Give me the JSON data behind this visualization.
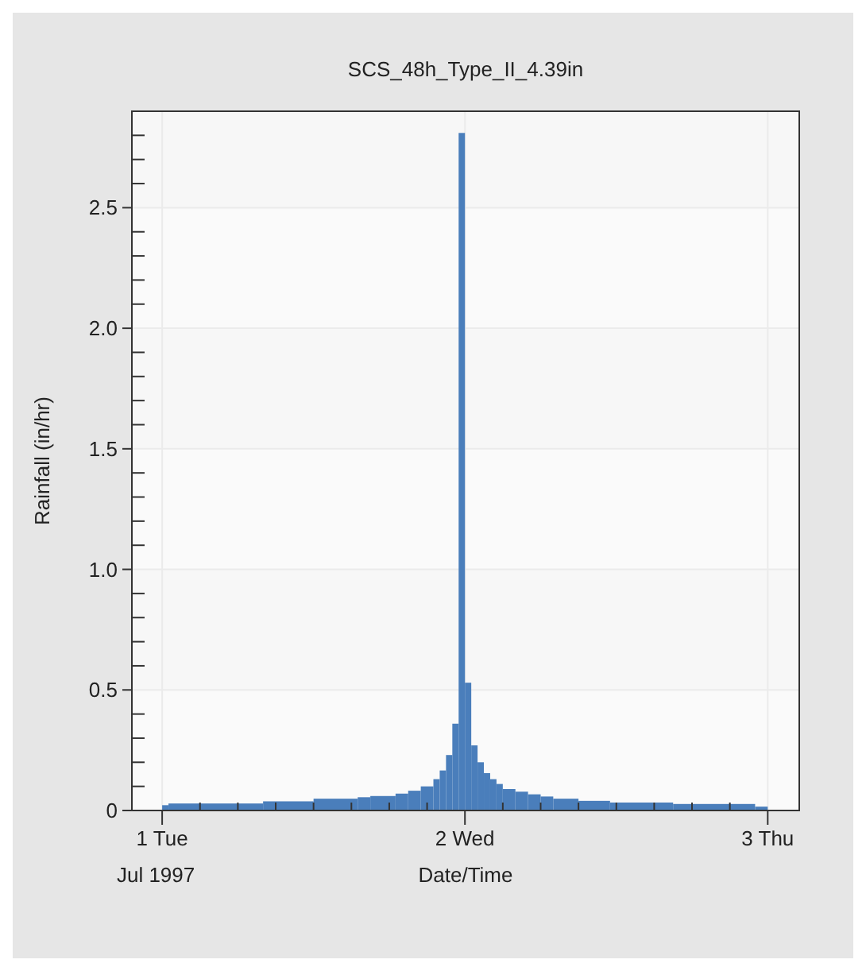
{
  "chart_data": {
    "type": "histogram",
    "title": "SCS_48h_Type_II_4.39in",
    "xlabel": "Date/Time",
    "ylabel": "Rainfall (in/hr)",
    "annotations": [
      "Jul 1997"
    ],
    "color": "#4a7ebb",
    "grid": true,
    "bins": [
      "1997-07-01T00:00",
      "1997-07-01T00:30",
      "1997-07-01T08:00",
      "1997-07-01T12:00",
      "1997-07-01T15:30",
      "1997-07-01T16:30",
      "1997-07-01T18:30",
      "1997-07-01T19:30",
      "1997-07-01T20:30",
      "1997-07-01T21:30",
      "1997-07-01T22:00",
      "1997-07-01T22:30",
      "1997-07-01T23:00",
      "1997-07-01T23:30",
      "1997-07-02T00:00",
      "1997-07-02T00:30",
      "1997-07-02T01:00",
      "1997-07-02T01:30",
      "1997-07-02T02:00",
      "1997-07-02T02:30",
      "1997-07-02T03:00",
      "1997-07-02T04:00",
      "1997-07-02T05:00",
      "1997-07-02T06:00",
      "1997-07-02T07:00",
      "1997-07-02T09:00",
      "1997-07-02T11:30",
      "1997-07-02T16:30",
      "1997-07-02T23:00",
      "1997-07-03T00:00"
    ],
    "values": [
      0.022,
      0.029,
      0.038,
      0.049,
      0.055,
      0.06,
      0.07,
      0.082,
      0.1,
      0.13,
      0.166,
      0.23,
      0.36,
      2.81,
      0.53,
      0.27,
      0.2,
      0.155,
      0.13,
      0.11,
      0.089,
      0.078,
      0.067,
      0.058,
      0.049,
      0.04,
      0.033,
      0.027,
      0.016
    ],
    "xlim": [
      "1997-06-30T21:36",
      "1997-07-03T02:30"
    ],
    "xticks": [
      {
        "value": "1997-07-01",
        "label": "1 Tue"
      },
      {
        "value": "1997-07-01T03:00",
        "label": null
      },
      {
        "value": "1997-07-01T06:00",
        "label": null
      },
      {
        "value": "1997-07-01T09:00",
        "label": null
      },
      {
        "value": "1997-07-01T12:00",
        "label": null
      },
      {
        "value": "1997-07-01T15:00",
        "label": null
      },
      {
        "value": "1997-07-01T18:00",
        "label": null
      },
      {
        "value": "1997-07-01T21:00",
        "label": null
      },
      {
        "value": "1997-07-02",
        "label": "2 Wed"
      },
      {
        "value": "1997-07-02T03:00",
        "label": null
      },
      {
        "value": "1997-07-02T06:00",
        "label": null
      },
      {
        "value": "1997-07-02T09:00",
        "label": null
      },
      {
        "value": "1997-07-02T12:00",
        "label": null
      },
      {
        "value": "1997-07-02T15:00",
        "label": null
      },
      {
        "value": "1997-07-02T18:00",
        "label": null
      },
      {
        "value": "1997-07-02T21:00",
        "label": null
      },
      {
        "value": "1997-07-03",
        "label": "3 Thu"
      }
    ],
    "ylim": [
      0,
      2.9
    ],
    "yticks": [
      0,
      {
        "value": 0.1,
        "label": null
      },
      {
        "value": 0.2,
        "label": null
      },
      {
        "value": 0.3,
        "label": null
      },
      {
        "value": 0.4,
        "label": null
      },
      0.5,
      {
        "value": 0.6,
        "label": null
      },
      {
        "value": 0.7,
        "label": null
      },
      {
        "value": 0.8,
        "label": null
      },
      {
        "value": 0.9,
        "label": null
      },
      {
        "value": 1,
        "label": "1.0"
      },
      {
        "value": 1.1,
        "label": null
      },
      {
        "value": 1.2,
        "label": null
      },
      {
        "value": 1.3,
        "label": null
      },
      {
        "value": 1.4,
        "label": null
      },
      1.5,
      {
        "value": 1.6,
        "label": null
      },
      {
        "value": 1.7,
        "label": null
      },
      {
        "value": 1.8,
        "label": null
      },
      {
        "value": 1.9,
        "label": null
      },
      {
        "value": 2,
        "label": "2.0"
      },
      {
        "value": 2.1,
        "label": null
      },
      {
        "value": 2.2,
        "label": null
      },
      {
        "value": 2.3,
        "label": null
      },
      {
        "value": 2.4,
        "label": null
      },
      2.5,
      {
        "value": 2.6,
        "label": null
      },
      {
        "value": 2.7,
        "label": null
      },
      {
        "value": 2.8,
        "label": null
      }
    ]
  }
}
